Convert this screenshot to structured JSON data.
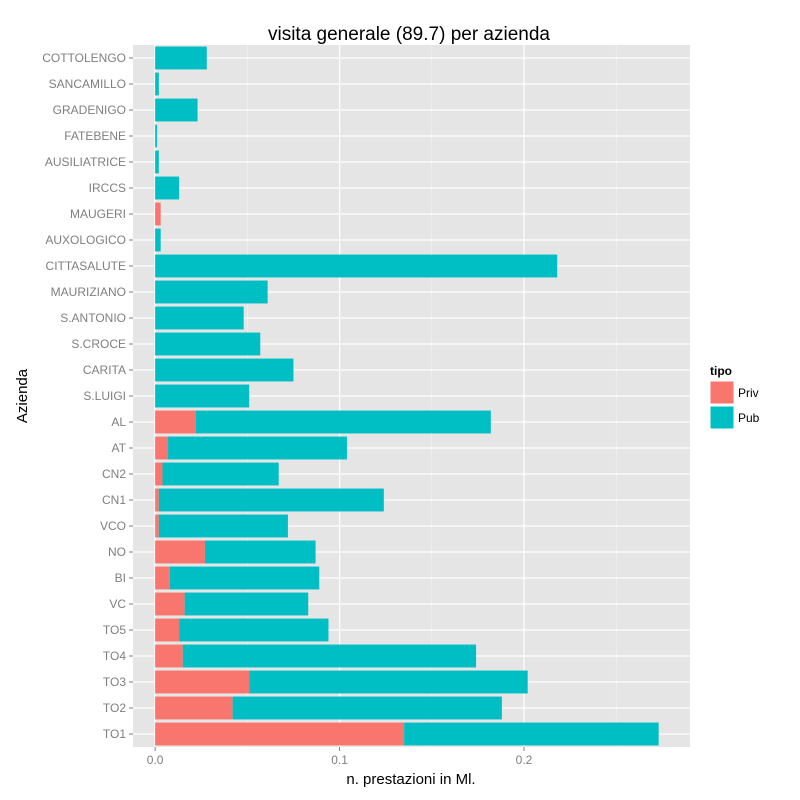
{
  "chart_data": {
    "type": "bar",
    "orientation": "horizontal",
    "stacked": true,
    "title": "visita generale (89.7) per azienda",
    "xlabel": "n. prestazioni in Ml.",
    "ylabel": "Azienda",
    "xlim": [
      -0.012,
      0.29
    ],
    "x_ticks": [
      0.0,
      0.1,
      0.2
    ],
    "x_tick_labels": [
      "0.0",
      "0.1",
      "0.2"
    ],
    "grid": true,
    "legend": {
      "title": "tipo",
      "position": "right"
    },
    "categories": [
      "COTTOLENGO",
      "SANCAMILLO",
      "GRADENIGO",
      "FATEBENE",
      "AUSILIATRICE",
      "IRCCS",
      "MAUGERI",
      "AUXOLOGICO",
      "CITTASALUTE",
      "MAURIZIANO",
      "S.ANTONIO",
      "S.CROCE",
      "CARITA",
      "S.LUIGI",
      "AL",
      "AT",
      "CN2",
      "CN1",
      "VCO",
      "NO",
      "BI",
      "VC",
      "TO5",
      "TO4",
      "TO3",
      "TO2",
      "TO1"
    ],
    "series": [
      {
        "name": "Priv",
        "color": "#F8766D",
        "values": [
          0,
          0,
          0,
          0,
          0,
          0,
          0.003,
          0,
          0,
          0,
          0,
          0,
          0,
          0,
          0.022,
          0.007,
          0.004,
          0.002,
          0.002,
          0.027,
          0.008,
          0.016,
          0.013,
          0.015,
          0.051,
          0.042,
          0.135
        ]
      },
      {
        "name": "Pub",
        "color": "#00BFC4",
        "values": [
          0.028,
          0.002,
          0.023,
          0.001,
          0.002,
          0.013,
          0,
          0.003,
          0.218,
          0.061,
          0.048,
          0.057,
          0.075,
          0.051,
          0.16,
          0.097,
          0.063,
          0.122,
          0.07,
          0.06,
          0.081,
          0.067,
          0.081,
          0.159,
          0.151,
          0.146,
          0.138
        ]
      }
    ]
  }
}
